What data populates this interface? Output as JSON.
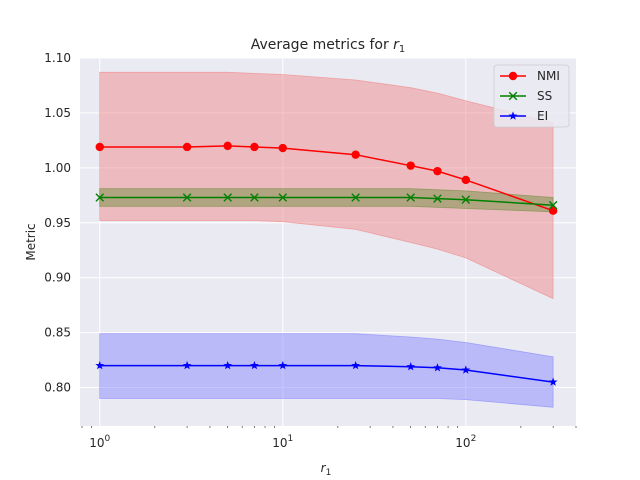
{
  "chart_data": {
    "type": "line",
    "title": "Average metrics for ",
    "title_symbol": "r",
    "title_subscript": "1",
    "xlabel_symbol": "r",
    "xlabel_subscript": "1",
    "ylabel": "Metric",
    "x_scale": "log",
    "xlim": [
      0.78,
      400
    ],
    "ylim": [
      0.765,
      1.1
    ],
    "yticks": [
      "0.80",
      "0.85",
      "0.90",
      "0.95",
      "1.00",
      "1.05",
      "1.10"
    ],
    "xticks": [
      {
        "base": "10",
        "exp": "0",
        "value": 1
      },
      {
        "base": "10",
        "exp": "1",
        "value": 10
      },
      {
        "base": "10",
        "exp": "2",
        "value": 100
      }
    ],
    "grid": true,
    "legend_position": "top-right",
    "x": [
      1,
      3,
      5,
      7,
      10,
      25,
      50,
      70,
      100,
      300
    ],
    "series": [
      {
        "name": "NMI",
        "color": "#ff0000",
        "band_color": "#f08080",
        "marker": "circle",
        "values": [
          1.019,
          1.019,
          1.02,
          1.019,
          1.018,
          1.012,
          1.002,
          0.997,
          0.989,
          0.961
        ],
        "lower": [
          0.952,
          0.952,
          0.952,
          0.952,
          0.951,
          0.944,
          0.932,
          0.926,
          0.918,
          0.881
        ],
        "upper": [
          1.087,
          1.087,
          1.087,
          1.086,
          1.085,
          1.08,
          1.073,
          1.068,
          1.061,
          1.041
        ]
      },
      {
        "name": "SS",
        "color": "#008000",
        "band_color": "#6a8a35",
        "marker": "x",
        "values": [
          0.973,
          0.973,
          0.973,
          0.973,
          0.973,
          0.973,
          0.973,
          0.972,
          0.971,
          0.966
        ],
        "lower": [
          0.965,
          0.965,
          0.965,
          0.965,
          0.965,
          0.965,
          0.965,
          0.964,
          0.963,
          0.96
        ],
        "upper": [
          0.981,
          0.981,
          0.981,
          0.981,
          0.981,
          0.981,
          0.981,
          0.98,
          0.979,
          0.973
        ]
      },
      {
        "name": "EI",
        "color": "#0000ff",
        "band_color": "#8080ff",
        "marker": "star",
        "values": [
          0.82,
          0.82,
          0.82,
          0.82,
          0.82,
          0.82,
          0.819,
          0.818,
          0.816,
          0.805
        ],
        "lower": [
          0.79,
          0.79,
          0.79,
          0.79,
          0.79,
          0.79,
          0.79,
          0.79,
          0.789,
          0.782
        ],
        "upper": [
          0.849,
          0.849,
          0.849,
          0.849,
          0.849,
          0.849,
          0.846,
          0.844,
          0.841,
          0.828
        ]
      }
    ]
  }
}
